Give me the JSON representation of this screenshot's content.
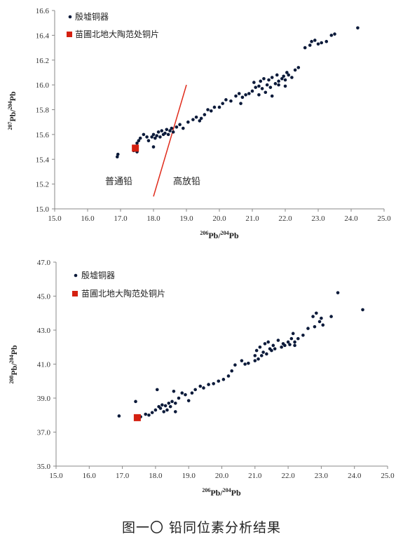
{
  "colors": {
    "bronze": "#0b1a3a",
    "tile": "#d42010",
    "divider": "#e02a1a",
    "axis": "#888888"
  },
  "caption": "图一〇  铅同位素分析结果",
  "chart_data": [
    {
      "type": "scatter",
      "xlabel_sup1": "206",
      "xlabel_base1": "Pb/",
      "xlabel_sup2": "204",
      "xlabel_base2": "Pb",
      "ylabel_sup1": "207",
      "ylabel_base1": "Pb/",
      "ylabel_sup2": "204",
      "ylabel_base2": "Pb",
      "xlim": [
        15.0,
        25.0
      ],
      "ylim": [
        15.0,
        16.6
      ],
      "xticks": [
        "15.0",
        "16.0",
        "17.0",
        "18.0",
        "19.0",
        "20.0",
        "21.0",
        "22.0",
        "23.0",
        "24.0",
        "25.0"
      ],
      "yticks": [
        "15.0",
        "15.2",
        "15.4",
        "15.6",
        "15.8",
        "16.0",
        "16.2",
        "16.4",
        "16.6"
      ],
      "legend": [
        "殷墟铜器",
        "苗圃北地大陶范处铜片"
      ],
      "annotations": {
        "left": "普通铅",
        "right": "高放铅"
      },
      "divider": [
        [
          18.0,
          15.1
        ],
        [
          19.0,
          16.0
        ]
      ],
      "series": [
        {
          "name": "殷墟铜器",
          "marker": "circle",
          "points": [
            [
              16.9,
              15.42
            ],
            [
              16.92,
              15.44
            ],
            [
              17.4,
              15.47
            ],
            [
              17.5,
              15.46
            ],
            [
              17.55,
              15.55
            ],
            [
              17.6,
              15.57
            ],
            [
              17.7,
              15.6
            ],
            [
              17.8,
              15.58
            ],
            [
              17.85,
              15.55
            ],
            [
              17.95,
              15.58
            ],
            [
              18.0,
              15.6
            ],
            [
              18.05,
              15.57
            ],
            [
              18.1,
              15.59
            ],
            [
              18.15,
              15.62
            ],
            [
              18.2,
              15.58
            ],
            [
              18.25,
              15.63
            ],
            [
              18.3,
              15.6
            ],
            [
              18.35,
              15.61
            ],
            [
              18.4,
              15.64
            ],
            [
              18.45,
              15.6
            ],
            [
              18.5,
              15.63
            ],
            [
              18.55,
              15.65
            ],
            [
              18.6,
              15.62
            ],
            [
              18.7,
              15.66
            ],
            [
              18.8,
              15.68
            ],
            [
              18.9,
              15.65
            ],
            [
              19.05,
              15.7
            ],
            [
              19.2,
              15.72
            ],
            [
              19.3,
              15.74
            ],
            [
              19.45,
              15.73
            ],
            [
              19.55,
              15.76
            ],
            [
              19.65,
              15.8
            ],
            [
              19.75,
              15.79
            ],
            [
              19.85,
              15.82
            ],
            [
              20.0,
              15.82
            ],
            [
              20.1,
              15.85
            ],
            [
              20.2,
              15.88
            ],
            [
              20.35,
              15.87
            ],
            [
              20.5,
              15.91
            ],
            [
              20.6,
              15.93
            ],
            [
              20.7,
              15.9
            ],
            [
              20.8,
              15.92
            ],
            [
              21.0,
              15.95
            ],
            [
              21.05,
              16.02
            ],
            [
              21.1,
              15.98
            ],
            [
              21.2,
              15.99
            ],
            [
              21.25,
              16.03
            ],
            [
              21.3,
              15.97
            ],
            [
              21.35,
              16.05
            ],
            [
              21.45,
              16.0
            ],
            [
              21.5,
              16.04
            ],
            [
              21.55,
              15.98
            ],
            [
              21.6,
              16.06
            ],
            [
              21.7,
              16.01
            ],
            [
              21.75,
              16.08
            ],
            [
              21.8,
              16.03
            ],
            [
              21.9,
              16.05
            ],
            [
              21.95,
              16.07
            ],
            [
              22.0,
              16.04
            ],
            [
              22.05,
              16.1
            ],
            [
              22.1,
              16.08
            ],
            [
              22.2,
              16.06
            ],
            [
              22.3,
              16.12
            ],
            [
              22.4,
              16.14
            ],
            [
              21.6,
              15.91
            ],
            [
              21.2,
              15.92
            ],
            [
              21.4,
              15.94
            ],
            [
              21.8,
              16.0
            ],
            [
              22.0,
              15.99
            ],
            [
              22.6,
              16.3
            ],
            [
              22.75,
              16.32
            ],
            [
              22.8,
              16.35
            ],
            [
              22.9,
              16.36
            ],
            [
              23.0,
              16.33
            ],
            [
              23.1,
              16.34
            ],
            [
              23.25,
              16.35
            ],
            [
              23.4,
              16.4
            ],
            [
              23.5,
              16.41
            ],
            [
              24.2,
              16.46
            ],
            [
              18.0,
              15.5
            ],
            [
              17.5,
              15.53
            ],
            [
              19.4,
              15.71
            ],
            [
              20.9,
              15.93
            ],
            [
              20.65,
              15.85
            ]
          ]
        },
        {
          "name": "苗圃北地大陶范处铜片",
          "marker": "square",
          "points": [
            [
              17.45,
              15.49
            ]
          ]
        }
      ]
    },
    {
      "type": "scatter",
      "xlabel_sup1": "206",
      "xlabel_base1": "Pb/",
      "xlabel_sup2": "204",
      "xlabel_base2": "Pb",
      "ylabel_sup1": "208",
      "ylabel_base1": "Pb/",
      "ylabel_sup2": "204",
      "ylabel_base2": "Pb",
      "xlim": [
        15.0,
        25.0
      ],
      "ylim": [
        35.0,
        47.0
      ],
      "xticks": [
        "15.0",
        "16.0",
        "17.0",
        "18.0",
        "19.0",
        "20.0",
        "21.0",
        "22.0",
        "23.0",
        "24.0",
        "25.0"
      ],
      "yticks": [
        "35.0",
        "37.0",
        "39.0",
        "41.0",
        "43.0",
        "45.0",
        "47.0"
      ],
      "legend": [
        "殷墟铜器",
        "苗圃北地大陶范处铜片"
      ],
      "series": [
        {
          "name": "殷墟铜器",
          "marker": "circle",
          "points": [
            [
              16.9,
              37.95
            ],
            [
              17.4,
              38.8
            ],
            [
              17.55,
              37.9
            ],
            [
              17.7,
              38.05
            ],
            [
              17.8,
              38.0
            ],
            [
              17.9,
              38.15
            ],
            [
              18.0,
              38.3
            ],
            [
              18.05,
              39.5
            ],
            [
              18.1,
              38.5
            ],
            [
              18.15,
              38.4
            ],
            [
              18.2,
              38.6
            ],
            [
              18.3,
              38.55
            ],
            [
              18.35,
              38.3
            ],
            [
              18.4,
              38.7
            ],
            [
              18.45,
              38.5
            ],
            [
              18.5,
              38.8
            ],
            [
              18.55,
              39.4
            ],
            [
              18.6,
              38.7
            ],
            [
              18.7,
              39.0
            ],
            [
              18.8,
              39.3
            ],
            [
              18.9,
              39.2
            ],
            [
              19.0,
              38.85
            ],
            [
              19.2,
              39.5
            ],
            [
              19.35,
              39.7
            ],
            [
              19.45,
              39.6
            ],
            [
              19.6,
              39.8
            ],
            [
              19.75,
              39.85
            ],
            [
              19.9,
              40.0
            ],
            [
              20.05,
              40.1
            ],
            [
              20.2,
              40.3
            ],
            [
              20.3,
              40.6
            ],
            [
              20.4,
              40.95
            ],
            [
              20.6,
              41.2
            ],
            [
              20.7,
              41.0
            ],
            [
              20.8,
              41.05
            ],
            [
              21.0,
              41.5
            ],
            [
              21.05,
              41.8
            ],
            [
              21.1,
              41.3
            ],
            [
              21.15,
              42.0
            ],
            [
              21.2,
              41.5
            ],
            [
              21.25,
              41.7
            ],
            [
              21.3,
              42.2
            ],
            [
              21.35,
              41.6
            ],
            [
              21.4,
              42.3
            ],
            [
              21.5,
              41.8
            ],
            [
              21.55,
              42.1
            ],
            [
              21.6,
              41.9
            ],
            [
              21.7,
              42.4
            ],
            [
              21.8,
              42.0
            ],
            [
              21.85,
              42.2
            ],
            [
              21.9,
              42.1
            ],
            [
              22.0,
              42.3
            ],
            [
              22.05,
              42.15
            ],
            [
              22.1,
              42.5
            ],
            [
              22.15,
              42.8
            ],
            [
              22.2,
              42.3
            ],
            [
              22.3,
              42.5
            ],
            [
              22.45,
              42.7
            ],
            [
              22.75,
              43.8
            ],
            [
              22.8,
              43.2
            ],
            [
              22.85,
              44.0
            ],
            [
              22.95,
              43.5
            ],
            [
              23.0,
              43.7
            ],
            [
              23.05,
              43.3
            ],
            [
              23.3,
              43.8
            ],
            [
              23.5,
              45.2
            ],
            [
              24.25,
              44.2
            ],
            [
              18.25,
              38.2
            ],
            [
              18.6,
              38.2
            ],
            [
              19.1,
              39.3
            ],
            [
              21.0,
              41.2
            ],
            [
              21.45,
              41.9
            ],
            [
              22.2,
              42.1
            ],
            [
              22.6,
              43.1
            ]
          ]
        },
        {
          "name": "苗圃北地大陶范处铜片",
          "marker": "square",
          "points": [
            [
              17.45,
              37.85
            ]
          ]
        }
      ]
    }
  ]
}
